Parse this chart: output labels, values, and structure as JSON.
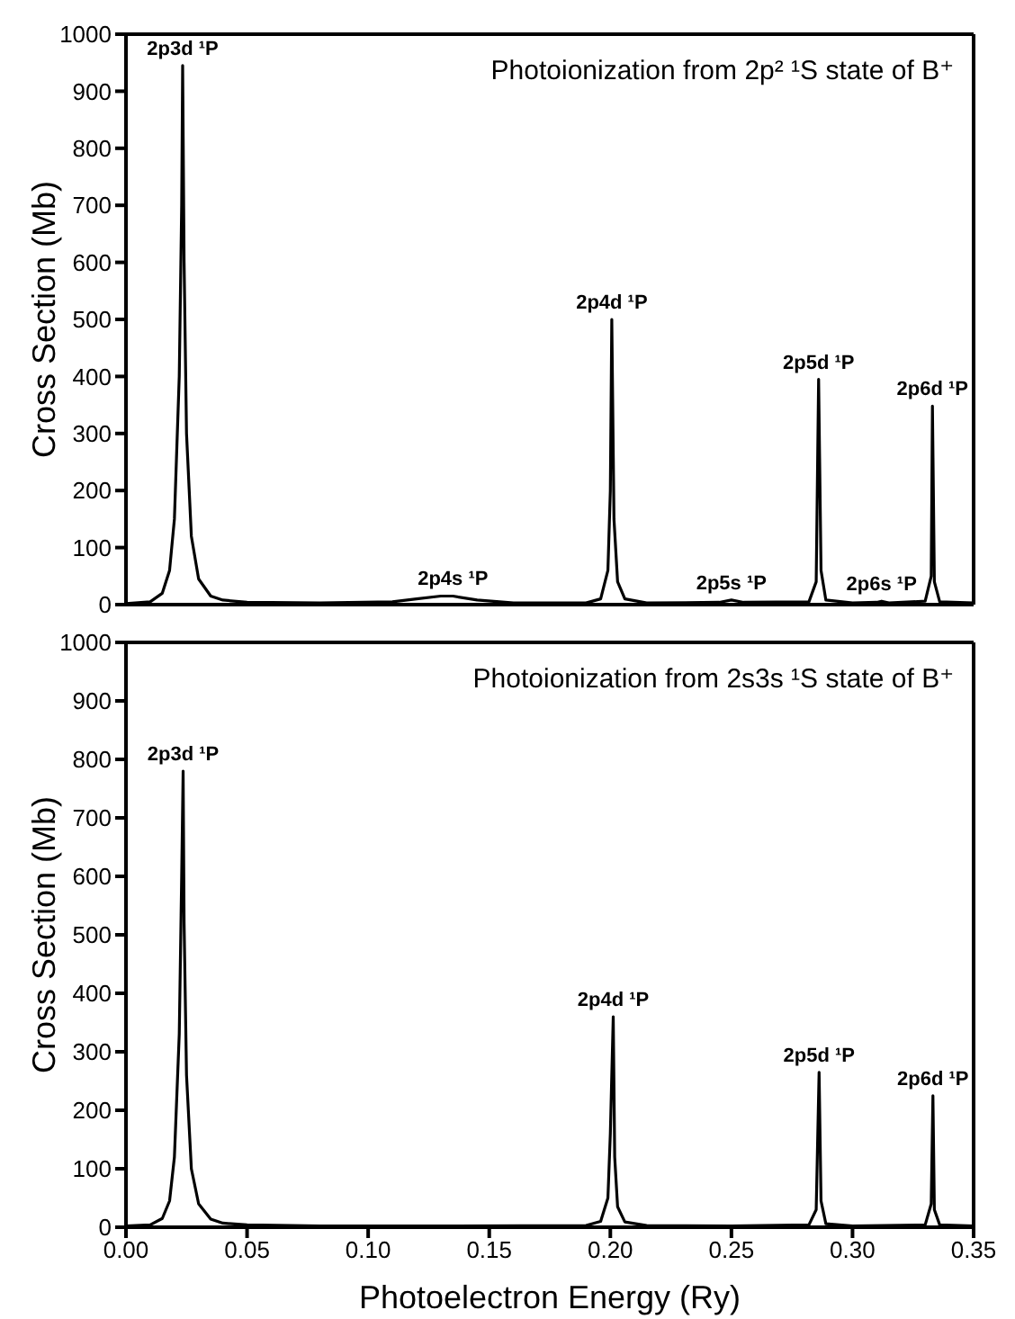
{
  "chart_data": [
    {
      "type": "line",
      "title": "Photoionization from 2p² ¹S state of B⁺",
      "ylabel": "Cross Section (Mb)",
      "x": [
        0,
        0.01,
        0.015,
        0.018,
        0.02,
        0.022,
        0.023,
        0.0234,
        0.024,
        0.025,
        0.027,
        0.03,
        0.035,
        0.04,
        0.05,
        0.08,
        0.11,
        0.12,
        0.13,
        0.135,
        0.145,
        0.16,
        0.19,
        0.196,
        0.199,
        0.2,
        0.2006,
        0.2015,
        0.203,
        0.206,
        0.215,
        0.245,
        0.25,
        0.255,
        0.282,
        0.285,
        0.286,
        0.287,
        0.289,
        0.3,
        0.31,
        0.312,
        0.315,
        0.33,
        0.3325,
        0.333,
        0.3338,
        0.336,
        0.35
      ],
      "series": [
        {
          "color": "#000000",
          "values": [
            2,
            5,
            20,
            60,
            150,
            400,
            700,
            945,
            600,
            300,
            120,
            45,
            15,
            8,
            4,
            3,
            5,
            10,
            15,
            15,
            8,
            3,
            3,
            10,
            60,
            200,
            500,
            150,
            40,
            10,
            3,
            4,
            8,
            4,
            5,
            40,
            395,
            60,
            8,
            3,
            4,
            6,
            3,
            6,
            50,
            348,
            40,
            5,
            3
          ]
        }
      ],
      "annotations": [
        {
          "text": "2p3d ¹P",
          "x": 0.0234,
          "y": 945
        },
        {
          "text": "2p4s ¹P",
          "x": 0.135,
          "y": 15
        },
        {
          "text": "2p4d ¹P",
          "x": 0.2006,
          "y": 500
        },
        {
          "text": "2p5s ¹P",
          "x": 0.25,
          "y": 8
        },
        {
          "text": "2p5d ¹P",
          "x": 0.286,
          "y": 395
        },
        {
          "text": "2p6s ¹P",
          "x": 0.312,
          "y": 6
        },
        {
          "text": "2p6d ¹P",
          "x": 0.333,
          "y": 348
        }
      ],
      "xlim": [
        0,
        0.35
      ],
      "xticks": [
        {
          "value": 0,
          "label": null
        },
        {
          "value": 0.05,
          "label": null
        },
        {
          "value": 0.1,
          "label": null
        },
        {
          "value": 0.15,
          "label": null
        },
        {
          "value": 0.2,
          "label": null
        },
        {
          "value": 0.25,
          "label": null
        },
        {
          "value": 0.3,
          "label": null
        },
        {
          "value": 0.35,
          "label": null
        }
      ],
      "ylim": [
        0,
        1000
      ],
      "yticks": [
        0,
        100,
        200,
        300,
        400,
        500,
        600,
        700,
        800,
        900,
        1000
      ],
      "tick_labels": "y",
      "grid": false,
      "legend": false,
      "marker": "none",
      "line_style": "solid"
    },
    {
      "type": "line",
      "title": "Photoionization from 2s3s ¹S state of B⁺",
      "xlabel": "Photoelectron Energy (Ry)",
      "ylabel": "Cross Section (Mb)",
      "x": [
        0,
        0.01,
        0.015,
        0.018,
        0.02,
        0.022,
        0.023,
        0.0236,
        0.024,
        0.025,
        0.027,
        0.03,
        0.035,
        0.04,
        0.05,
        0.08,
        0.13,
        0.19,
        0.196,
        0.199,
        0.2,
        0.2012,
        0.2018,
        0.203,
        0.206,
        0.215,
        0.25,
        0.282,
        0.285,
        0.2862,
        0.287,
        0.289,
        0.3,
        0.33,
        0.3325,
        0.3332,
        0.3338,
        0.336,
        0.35
      ],
      "series": [
        {
          "color": "#000000",
          "values": [
            2,
            4,
            15,
            45,
            120,
            330,
            600,
            780,
            520,
            260,
            100,
            40,
            14,
            7,
            4,
            2,
            2,
            3,
            10,
            50,
            160,
            360,
            120,
            35,
            9,
            3,
            2,
            4,
            30,
            265,
            45,
            6,
            2,
            4,
            40,
            225,
            30,
            4,
            2
          ]
        }
      ],
      "annotations": [
        {
          "text": "2p3d ¹P",
          "x": 0.0236,
          "y": 780
        },
        {
          "text": "2p4d ¹P",
          "x": 0.2012,
          "y": 360
        },
        {
          "text": "2p5d ¹P",
          "x": 0.2862,
          "y": 265
        },
        {
          "text": "2p6d ¹P",
          "x": 0.3332,
          "y": 225
        }
      ],
      "xlim": [
        0,
        0.35
      ],
      "xticks": [
        {
          "value": 0,
          "label": "0.00"
        },
        {
          "value": 0.05,
          "label": "0.05"
        },
        {
          "value": 0.1,
          "label": "0.10"
        },
        {
          "value": 0.15,
          "label": "0.15"
        },
        {
          "value": 0.2,
          "label": "0.20"
        },
        {
          "value": 0.25,
          "label": "0.25"
        },
        {
          "value": 0.3,
          "label": "0.30"
        },
        {
          "value": 0.35,
          "label": "0.35"
        }
      ],
      "ylim": [
        0,
        1000
      ],
      "yticks": [
        0,
        100,
        200,
        300,
        400,
        500,
        600,
        700,
        800,
        900,
        1000
      ],
      "grid": false,
      "legend": false,
      "marker": "none",
      "line_style": "solid"
    }
  ]
}
